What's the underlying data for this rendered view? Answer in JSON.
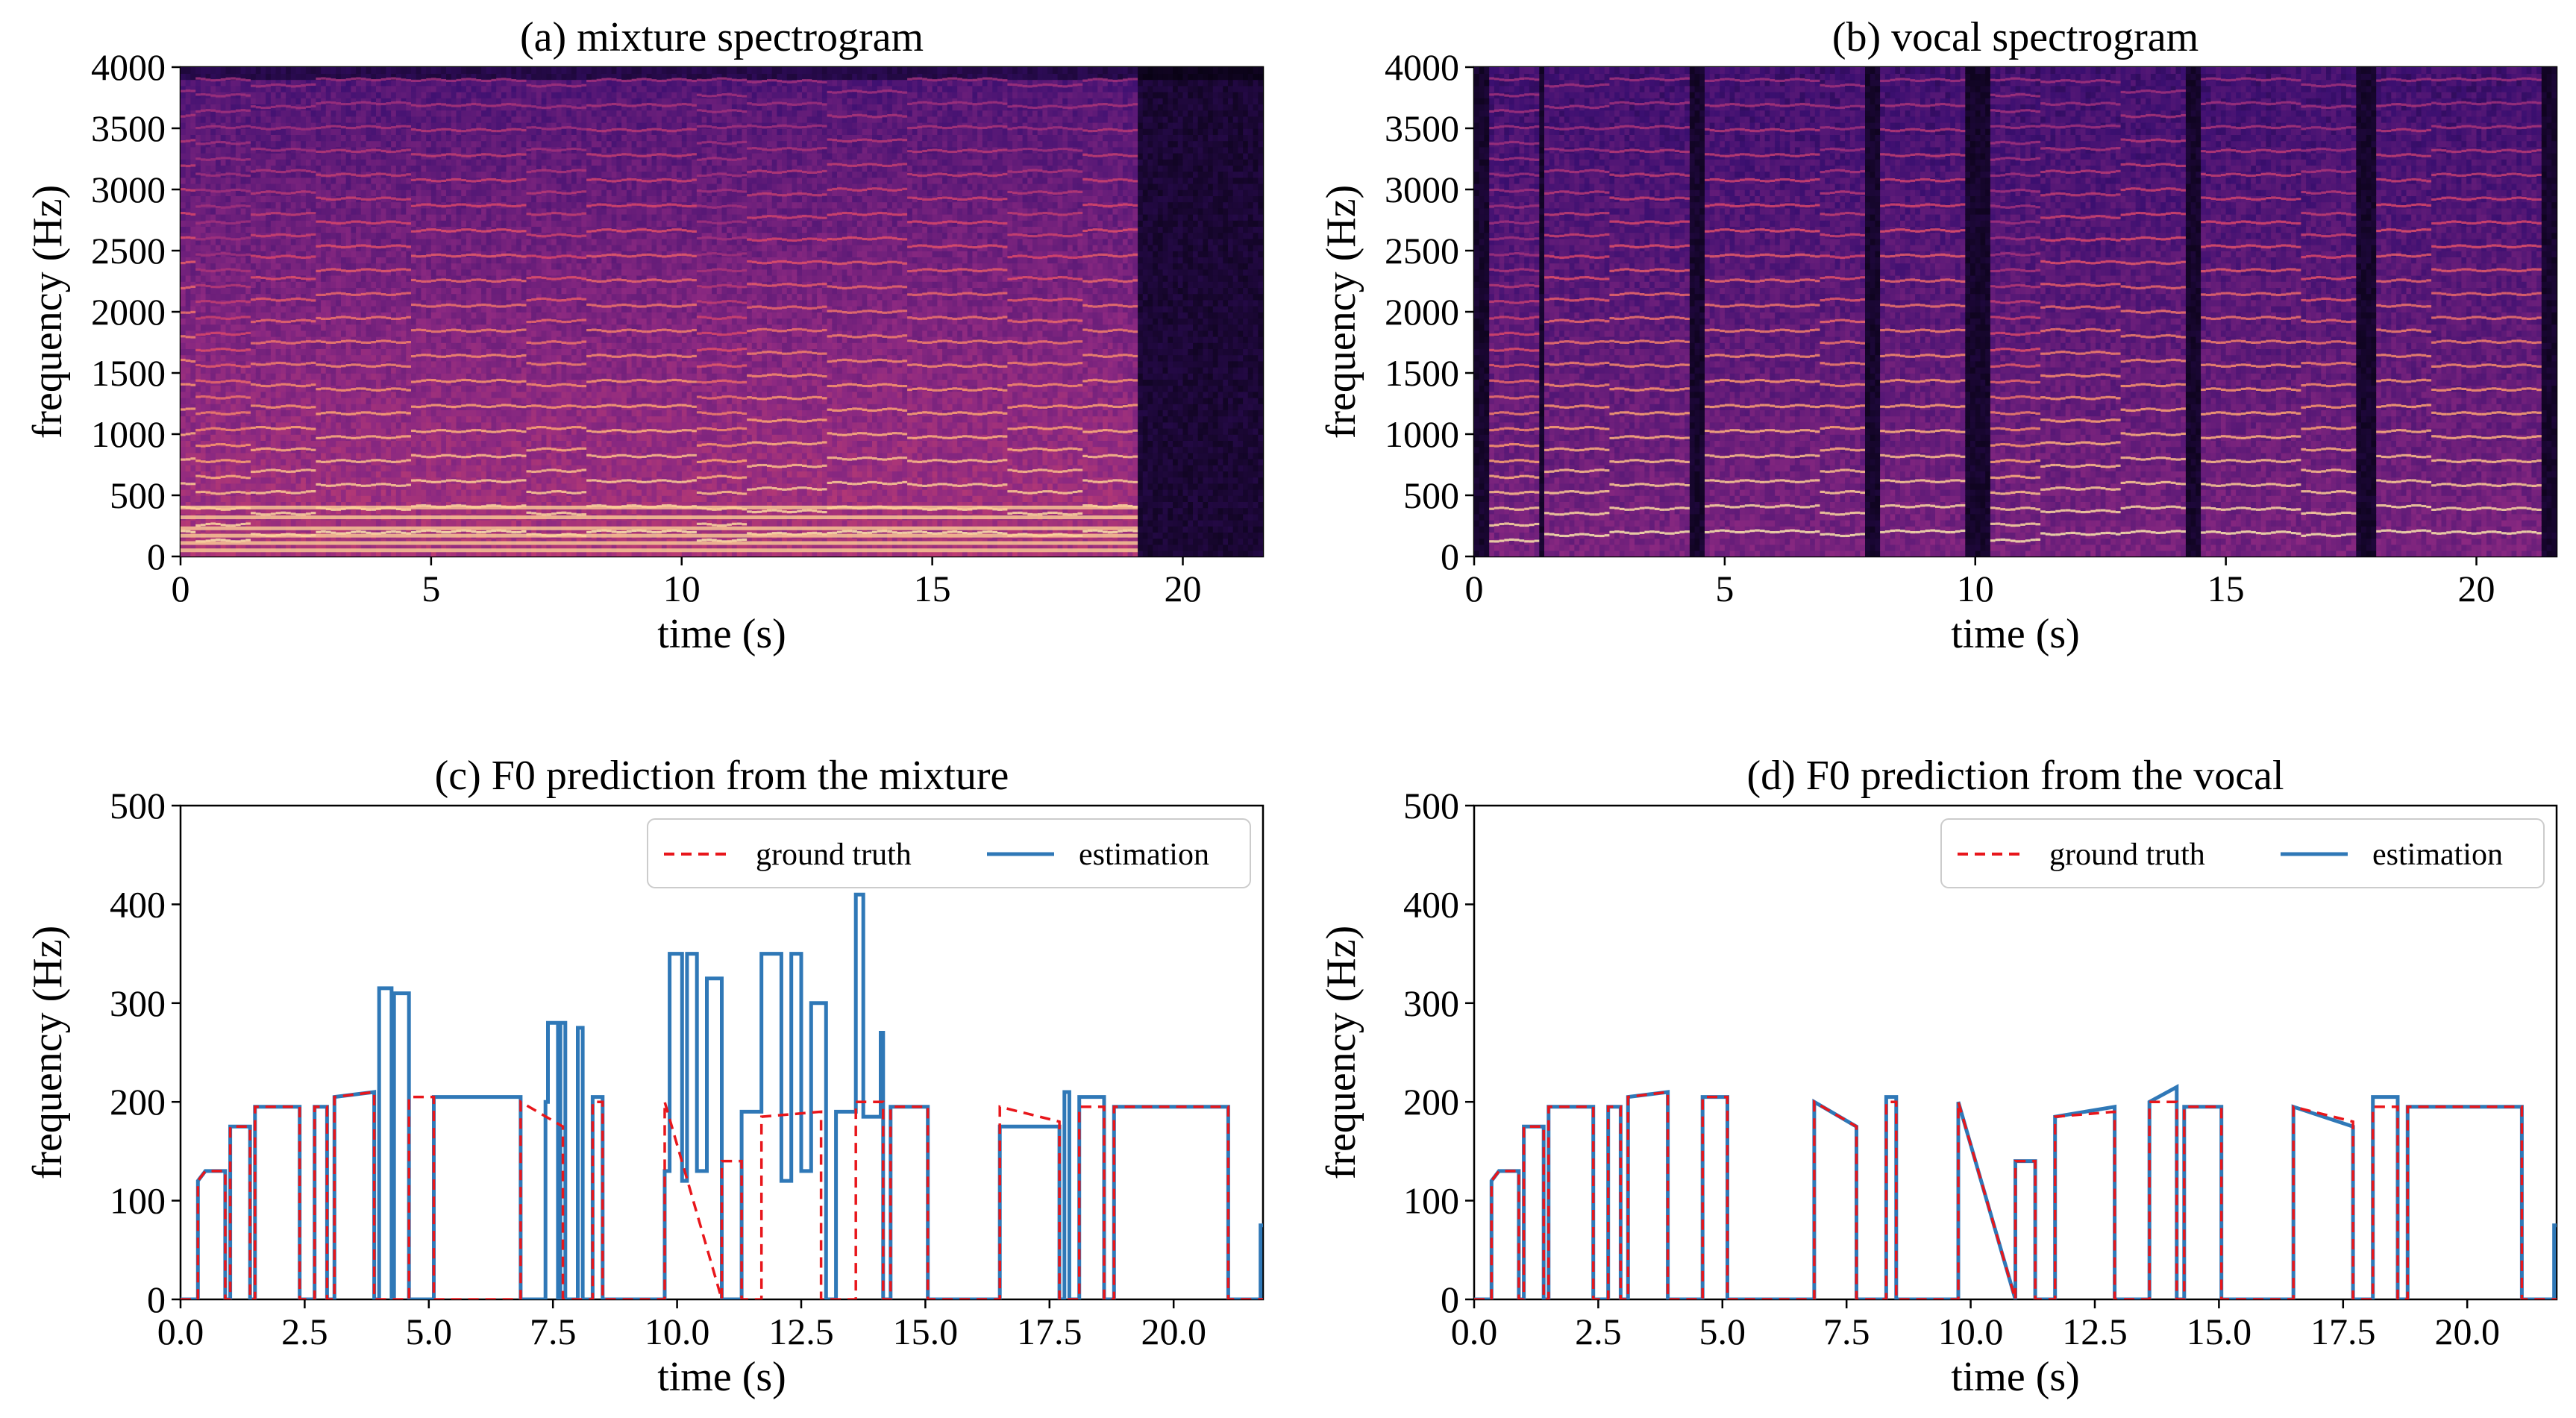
{
  "chart_data": [
    {
      "type": "heatmap",
      "title": "(a) mixture spectrogram",
      "xlabel": "time (s)",
      "ylabel": "frequency (Hz)",
      "xlim": [
        0,
        21.6
      ],
      "ylim": [
        0,
        4000
      ],
      "xticks": [
        0,
        5,
        10,
        15,
        20
      ],
      "xtick_labels": [
        "0",
        "5",
        "10",
        "15",
        "20"
      ],
      "yticks": [
        0,
        500,
        1000,
        1500,
        2000,
        2500,
        3000,
        3500,
        4000
      ],
      "ytick_labels": [
        "0",
        "500",
        "1000",
        "1500",
        "2000",
        "2500",
        "3000",
        "3500",
        "4000"
      ],
      "colormap": [
        "#000004",
        "#3b0f70",
        "#8c2981",
        "#de4968",
        "#fe9f6d",
        "#fcfdbf"
      ],
      "silence_from": 19.1
    },
    {
      "type": "heatmap",
      "title": "(b) vocal spectrogram",
      "xlabel": "time (s)",
      "ylabel": "frequency (Hz)",
      "xlim": [
        0,
        21.6
      ],
      "ylim": [
        0,
        4000
      ],
      "xticks": [
        0,
        5,
        10,
        15,
        20
      ],
      "xtick_labels": [
        "0",
        "5",
        "10",
        "15",
        "20"
      ],
      "yticks": [
        0,
        500,
        1000,
        1500,
        2000,
        2500,
        3000,
        3500,
        4000
      ],
      "ytick_labels": [
        "0",
        "500",
        "1000",
        "1500",
        "2000",
        "2500",
        "3000",
        "3500",
        "4000"
      ],
      "colormap": [
        "#000004",
        "#3b0f70",
        "#8c2981",
        "#de4968",
        "#fe9f6d",
        "#fcfdbf"
      ],
      "voiced_segments": [
        [
          0.3,
          1.3
        ],
        [
          1.4,
          4.3
        ],
        [
          4.6,
          7.8
        ],
        [
          8.1,
          9.8
        ],
        [
          10.3,
          14.2
        ],
        [
          14.5,
          17.6
        ],
        [
          18.0,
          21.3
        ]
      ]
    },
    {
      "type": "line",
      "title": "(c) F0 prediction from the mixture",
      "xlabel": "time (s)",
      "ylabel": "frequency (Hz)",
      "xlim": [
        0,
        21.8
      ],
      "ylim": [
        0,
        500
      ],
      "xticks": [
        0,
        2.5,
        5,
        7.5,
        10,
        12.5,
        15,
        17.5,
        20
      ],
      "xtick_labels": [
        "0.0",
        "2.5",
        "5.0",
        "7.5",
        "10.0",
        "12.5",
        "15.0",
        "17.5",
        "20.0"
      ],
      "yticks": [
        0,
        100,
        200,
        300,
        400,
        500
      ],
      "ytick_labels": [
        "0",
        "100",
        "200",
        "300",
        "400",
        "500"
      ],
      "legend": {
        "location": "upper right",
        "entries": [
          "ground truth",
          "estimation"
        ]
      },
      "series": [
        {
          "name": "ground truth",
          "color": "#e8161b",
          "style": "dashed",
          "x": [
            0,
            0.35,
            0.35,
            0.5,
            0.9,
            0.9,
            1.0,
            1.0,
            1.4,
            1.4,
            1.5,
            1.5,
            2.4,
            2.4,
            2.7,
            2.7,
            2.95,
            2.95,
            3.1,
            3.1,
            3.9,
            3.9,
            4.6,
            4.6,
            5.1,
            5.1,
            6.85,
            6.85,
            7.7,
            7.7,
            8.3,
            8.3,
            8.5,
            8.5,
            9.75,
            9.75,
            10.9,
            10.9,
            11.3,
            11.3,
            11.7,
            11.7,
            12.9,
            12.9,
            13.6,
            13.6,
            14.15,
            14.15,
            14.3,
            14.3,
            15.05,
            15.05,
            16.5,
            16.5,
            17.7,
            17.7,
            18.1,
            18.1,
            18.6,
            18.6,
            18.8,
            18.8,
            21.1,
            21.1,
            21.8
          ],
          "y": [
            0,
            0,
            120,
            130,
            130,
            0,
            0,
            175,
            175,
            0,
            0,
            195,
            195,
            0,
            0,
            195,
            195,
            0,
            0,
            205,
            210,
            0,
            0,
            205,
            205,
            0,
            0,
            200,
            175,
            0,
            0,
            200,
            200,
            0,
            0,
            200,
            0,
            140,
            140,
            0,
            0,
            185,
            190,
            0,
            0,
            200,
            200,
            0,
            0,
            195,
            195,
            0,
            0,
            195,
            180,
            0,
            0,
            195,
            195,
            0,
            0,
            195,
            195,
            0,
            0
          ]
        },
        {
          "name": "estimation",
          "color": "#2f78b7",
          "style": "solid",
          "x": [
            0,
            0.35,
            0.35,
            0.5,
            0.9,
            0.9,
            1.0,
            1.0,
            1.4,
            1.4,
            1.5,
            1.5,
            2.4,
            2.4,
            2.7,
            2.7,
            2.95,
            2.95,
            3.1,
            3.1,
            3.9,
            3.9,
            4.0,
            4.0,
            4.25,
            4.25,
            4.3,
            4.3,
            4.6,
            4.6,
            5.1,
            5.1,
            6.85,
            6.85,
            7.35,
            7.35,
            7.4,
            7.4,
            7.6,
            7.6,
            7.65,
            7.65,
            7.75,
            7.75,
            8.0,
            8.0,
            8.1,
            8.1,
            8.3,
            8.3,
            8.5,
            8.5,
            9.75,
            9.75,
            9.85,
            9.85,
            10.1,
            10.1,
            10.2,
            10.2,
            10.4,
            10.4,
            10.6,
            10.6,
            10.9,
            10.9,
            11.3,
            11.3,
            11.7,
            11.7,
            12.1,
            12.1,
            12.3,
            12.3,
            12.5,
            12.5,
            12.7,
            12.7,
            13.0,
            13.0,
            13.2,
            13.2,
            13.6,
            13.6,
            13.75,
            13.75,
            14.1,
            14.1,
            14.15,
            14.15,
            14.3,
            14.3,
            15.05,
            15.05,
            16.5,
            16.5,
            17.7,
            17.7,
            17.8,
            17.8,
            17.9,
            17.9,
            18.1,
            18.1,
            18.6,
            18.6,
            18.8,
            18.8,
            21.1,
            21.1,
            21.75,
            21.75,
            21.8
          ],
          "y": [
            0,
            0,
            120,
            130,
            130,
            0,
            0,
            175,
            175,
            0,
            0,
            195,
            195,
            0,
            0,
            195,
            195,
            0,
            0,
            205,
            210,
            0,
            0,
            315,
            315,
            0,
            0,
            310,
            310,
            0,
            0,
            205,
            205,
            0,
            0,
            200,
            200,
            280,
            280,
            0,
            0,
            280,
            280,
            0,
            0,
            275,
            275,
            0,
            0,
            205,
            205,
            0,
            0,
            130,
            130,
            350,
            350,
            120,
            120,
            350,
            350,
            130,
            130,
            325,
            325,
            0,
            0,
            190,
            190,
            350,
            350,
            120,
            120,
            350,
            350,
            130,
            130,
            300,
            300,
            0,
            0,
            190,
            190,
            410,
            410,
            185,
            185,
            270,
            270,
            0,
            0,
            195,
            195,
            0,
            0,
            175,
            175,
            0,
            0,
            210,
            210,
            0,
            0,
            205,
            205,
            0,
            0,
            195,
            195,
            0,
            0,
            75,
            75
          ]
        }
      ]
    },
    {
      "type": "line",
      "title": "(d) F0 prediction from the vocal",
      "xlabel": "time (s)",
      "ylabel": "frequency (Hz)",
      "xlim": [
        0,
        21.8
      ],
      "ylim": [
        0,
        500
      ],
      "xticks": [
        0,
        2.5,
        5,
        7.5,
        10,
        12.5,
        15,
        17.5,
        20
      ],
      "xtick_labels": [
        "0.0",
        "2.5",
        "5.0",
        "7.5",
        "10.0",
        "12.5",
        "15.0",
        "17.5",
        "20.0"
      ],
      "yticks": [
        0,
        100,
        200,
        300,
        400,
        500
      ],
      "ytick_labels": [
        "0",
        "100",
        "200",
        "300",
        "400",
        "500"
      ],
      "legend": {
        "location": "upper right",
        "entries": [
          "ground truth",
          "estimation"
        ]
      },
      "series": [
        {
          "name": "ground truth",
          "color": "#e8161b",
          "style": "dashed",
          "x": [
            0,
            0.35,
            0.35,
            0.5,
            0.9,
            0.9,
            1.0,
            1.0,
            1.4,
            1.4,
            1.5,
            1.5,
            2.4,
            2.4,
            2.7,
            2.7,
            2.95,
            2.95,
            3.1,
            3.1,
            3.9,
            3.9,
            4.6,
            4.6,
            5.1,
            5.1,
            6.85,
            6.85,
            7.7,
            7.7,
            8.3,
            8.3,
            8.5,
            8.5,
            9.75,
            9.75,
            10.9,
            10.9,
            11.3,
            11.3,
            11.7,
            11.7,
            12.9,
            12.9,
            13.6,
            13.6,
            14.15,
            14.15,
            14.3,
            14.3,
            15.05,
            15.05,
            16.5,
            16.5,
            17.7,
            17.7,
            18.1,
            18.1,
            18.6,
            18.6,
            18.8,
            18.8,
            21.1,
            21.1,
            21.8
          ],
          "y": [
            0,
            0,
            120,
            130,
            130,
            0,
            0,
            175,
            175,
            0,
            0,
            195,
            195,
            0,
            0,
            195,
            195,
            0,
            0,
            205,
            210,
            0,
            0,
            205,
            205,
            0,
            0,
            200,
            175,
            0,
            0,
            200,
            200,
            0,
            0,
            200,
            0,
            140,
            140,
            0,
            0,
            185,
            190,
            0,
            0,
            200,
            200,
            0,
            0,
            195,
            195,
            0,
            0,
            195,
            180,
            0,
            0,
            195,
            195,
            0,
            0,
            195,
            195,
            0,
            0
          ]
        },
        {
          "name": "estimation",
          "color": "#2f78b7",
          "style": "solid",
          "x": [
            0,
            0.35,
            0.35,
            0.5,
            0.9,
            0.9,
            1.0,
            1.0,
            1.4,
            1.4,
            1.5,
            1.5,
            2.4,
            2.4,
            2.7,
            2.7,
            2.95,
            2.95,
            3.1,
            3.1,
            3.9,
            3.9,
            4.6,
            4.6,
            5.1,
            5.1,
            6.85,
            6.85,
            7.7,
            7.7,
            8.3,
            8.3,
            8.5,
            8.5,
            9.75,
            9.75,
            10.9,
            10.9,
            11.3,
            11.3,
            11.7,
            11.7,
            12.9,
            12.9,
            13.6,
            13.6,
            14.15,
            14.15,
            14.3,
            14.3,
            15.05,
            15.05,
            16.5,
            16.5,
            17.7,
            17.7,
            18.1,
            18.1,
            18.6,
            18.6,
            18.8,
            18.8,
            21.1,
            21.1,
            21.75,
            21.75,
            21.8
          ],
          "y": [
            0,
            0,
            120,
            130,
            130,
            0,
            0,
            175,
            175,
            0,
            0,
            195,
            195,
            0,
            0,
            195,
            195,
            0,
            0,
            205,
            210,
            0,
            0,
            205,
            205,
            0,
            0,
            200,
            175,
            0,
            0,
            205,
            205,
            0,
            0,
            200,
            0,
            140,
            140,
            0,
            0,
            185,
            195,
            0,
            0,
            200,
            215,
            0,
            0,
            195,
            195,
            0,
            0,
            195,
            175,
            0,
            0,
            205,
            205,
            0,
            0,
            195,
            195,
            0,
            0,
            75,
            75
          ]
        }
      ]
    }
  ]
}
